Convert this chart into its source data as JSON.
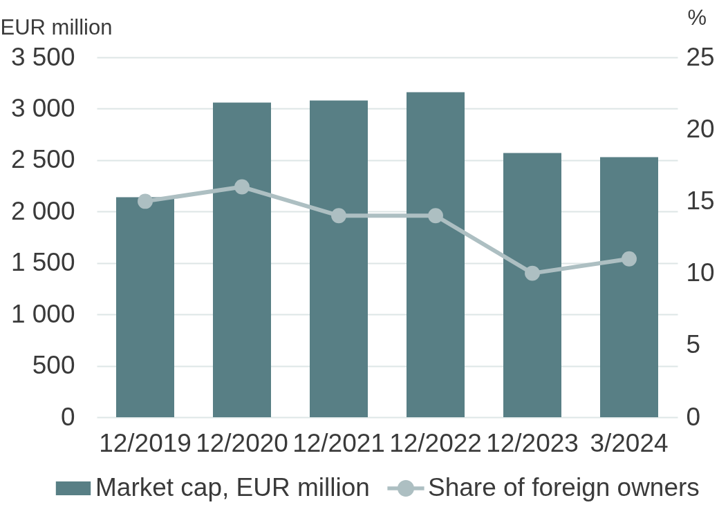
{
  "chart_data": {
    "type": "bar",
    "categories": [
      "12/2019",
      "12/2020",
      "12/2021",
      "12/2022",
      "12/2023",
      "3/2024"
    ],
    "ylabel": "EUR million",
    "y2label": "%",
    "series": [
      {
        "name": "Market cap, EUR million",
        "color": "#587f85",
        "values": [
          2140,
          3060,
          3080,
          3160,
          2570,
          2530
        ]
      },
      {
        "name": "Share of foreign owners",
        "type": "line",
        "axis": "y2",
        "color": "#adbfc2",
        "values": [
          15,
          16,
          14,
          14,
          10,
          11
        ]
      }
    ],
    "ylim": [
      0,
      3500
    ],
    "yticks": [
      0,
      500,
      {
        "value": 1000,
        "label": "1 000"
      },
      {
        "value": 1500,
        "label": "1 500"
      },
      {
        "value": 2000,
        "label": "2 000"
      },
      {
        "value": 2500,
        "label": "2 500"
      },
      {
        "value": 3000,
        "label": "3 000"
      },
      {
        "value": 3500,
        "label": "3 500"
      }
    ],
    "y2lim": [
      0,
      25
    ],
    "y2ticks": [
      0,
      5,
      10,
      15,
      20,
      25
    ],
    "grid": "y",
    "legend": "bottom",
    "marker": "circle",
    "line_style": "solid"
  }
}
